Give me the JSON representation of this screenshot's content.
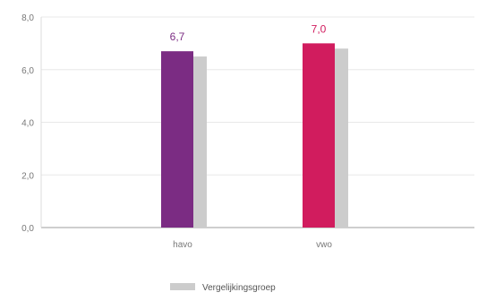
{
  "chart_data": {
    "type": "bar",
    "categories": [
      "havo",
      "vwo"
    ],
    "series": [
      {
        "name": "",
        "values": [
          6.7,
          7.0
        ],
        "colors": [
          "#7b2c83",
          "#d11c5e"
        ],
        "value_labels": [
          "6,7",
          "7,0"
        ]
      },
      {
        "name": "Vergelijkingsgroep",
        "values": [
          6.5,
          6.8
        ],
        "color": "#cccccc"
      }
    ],
    "ylim": [
      0,
      8
    ],
    "yticks": [
      "0,0",
      "2,0",
      "4,0",
      "6,0",
      "8,0"
    ],
    "ytick_values": [
      0,
      2,
      4,
      6,
      8
    ],
    "grid": true,
    "legend_position": "bottom-center",
    "title": "",
    "xlabel": "",
    "ylabel": ""
  }
}
